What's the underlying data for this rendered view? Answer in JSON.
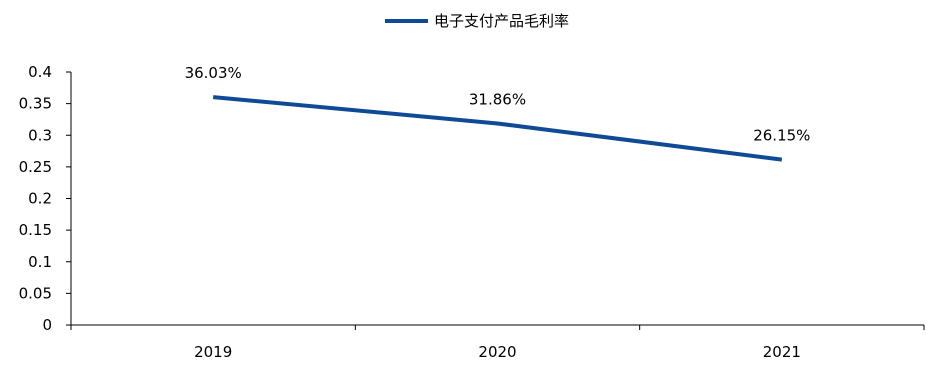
{
  "chart_data": {
    "type": "line",
    "categories": [
      "2019",
      "2020",
      "2021"
    ],
    "series": [
      {
        "name": "电子支付产品毛利率",
        "values": [
          0.3603,
          0.3186,
          0.2615
        ],
        "data_labels": [
          "36.03%",
          "31.86%",
          "26.15%"
        ],
        "color": "#0f4a97"
      }
    ],
    "ylim": [
      0,
      0.4
    ],
    "yticks": [
      "0",
      "0.05",
      "0.1",
      "0.15",
      "0.2",
      "0.25",
      "0.3",
      "0.35",
      "0.4"
    ],
    "legend_position": "top-center",
    "grid": false
  }
}
